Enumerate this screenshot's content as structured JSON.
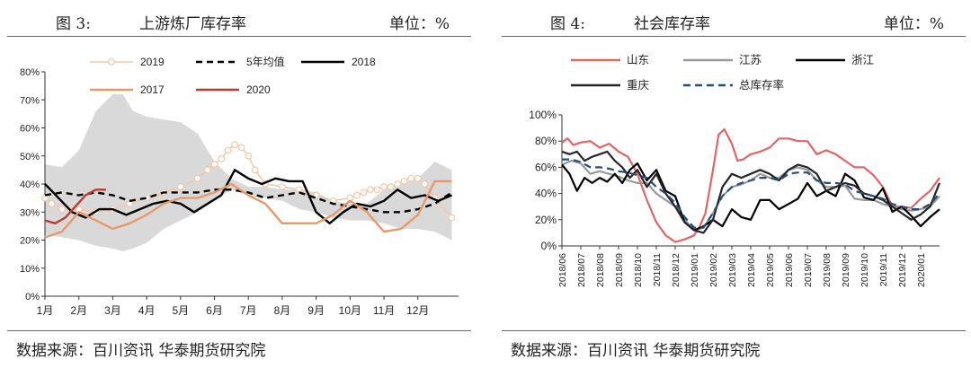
{
  "charts": [
    {
      "figure_label": "图 3:",
      "title": "上游炼厂库存率",
      "unit": "单位：%",
      "source": "数据来源：百川资讯  华泰期货研究院"
    },
    {
      "figure_label": "图 4:",
      "title": "社会库存率",
      "unit": "单位：%",
      "source": "数据来源：百川资讯  华泰期货研究院"
    }
  ],
  "chart_data": [
    {
      "type": "line",
      "title": "上游炼厂库存率",
      "ylim": [
        0,
        80
      ],
      "y_ticks": [
        "0%",
        "10%",
        "20%",
        "30%",
        "40%",
        "50%",
        "60%",
        "70%",
        "80%"
      ],
      "x_ticks": [
        "1月",
        "2月",
        "3月",
        "4月",
        "5月",
        "6月",
        "7月",
        "8月",
        "9月",
        "10月",
        "11月",
        "12月"
      ],
      "xlim": [
        1,
        13.2
      ],
      "legend": "top",
      "band": {
        "color": "#d9d9d9",
        "x": [
          1.0,
          1.5,
          2.0,
          2.5,
          3.0,
          3.3,
          3.6,
          4.0,
          4.5,
          5.0,
          5.5,
          6.0,
          6.5,
          7.0,
          7.5,
          8.0,
          8.5,
          9.0,
          9.5,
          10.0,
          10.5,
          11.0,
          11.5,
          12.0,
          12.5,
          13.0
        ],
        "upper": [
          47,
          46,
          52,
          66,
          72,
          72,
          66,
          64,
          63,
          62,
          58,
          48,
          42,
          39,
          39,
          38,
          38,
          37,
          34,
          33,
          33,
          38,
          40,
          42,
          48,
          45
        ],
        "lower": [
          22,
          21,
          20,
          18,
          17,
          16,
          17,
          19,
          24,
          27,
          30,
          34,
          38,
          36,
          35,
          34,
          31,
          30,
          28,
          27,
          27,
          26,
          24,
          24,
          23,
          20
        ]
      },
      "series": [
        {
          "name": "2019",
          "color": "#f4c7a8",
          "marker": "circle",
          "x": [
            1.0,
            1.2,
            1.5,
            2.0,
            2.5,
            3.0,
            3.5,
            4.0,
            4.5,
            5.0,
            5.5,
            5.8,
            6.0,
            6.2,
            6.4,
            6.6,
            6.8,
            7.0,
            7.2,
            7.5,
            8.0,
            8.5,
            9.0,
            9.5,
            10.0,
            10.2,
            10.4,
            10.6,
            10.8,
            11.0,
            11.2,
            11.4,
            11.6,
            11.8,
            12.0,
            12.2,
            12.5,
            13.0
          ],
          "y": [
            35,
            33,
            31,
            31,
            30,
            31,
            33,
            35,
            37,
            39,
            42,
            45,
            47,
            49,
            52,
            54,
            53,
            50,
            45,
            40,
            39,
            38,
            36,
            34,
            35,
            36,
            37,
            38,
            38,
            39,
            39,
            40,
            41,
            42,
            42,
            40,
            35,
            28
          ]
        },
        {
          "name": "5年均值",
          "color": "#000000",
          "dash": true,
          "x": [
            1.0,
            1.5,
            2.0,
            2.5,
            3.0,
            3.5,
            4.0,
            4.5,
            5.0,
            5.5,
            6.0,
            6.5,
            7.0,
            7.5,
            8.0,
            8.5,
            9.0,
            9.5,
            10.0,
            10.5,
            11.0,
            11.5,
            12.0,
            12.5,
            13.0
          ],
          "y": [
            36,
            37,
            36,
            37,
            36,
            34,
            35,
            37,
            37,
            37,
            38,
            38,
            37,
            35,
            36,
            37,
            35,
            33,
            32,
            31,
            30,
            30,
            31,
            33,
            37
          ]
        },
        {
          "name": "2018",
          "color": "#000000",
          "x": [
            1.0,
            1.4,
            1.8,
            2.2,
            2.6,
            3.0,
            3.4,
            3.8,
            4.2,
            4.6,
            5.0,
            5.4,
            5.8,
            6.2,
            6.6,
            7.0,
            7.4,
            7.8,
            8.2,
            8.6,
            9.0,
            9.4,
            9.8,
            10.2,
            10.6,
            11.0,
            11.4,
            11.8,
            12.2,
            12.6,
            13.0
          ],
          "y": [
            40,
            35,
            30,
            28,
            31,
            31,
            29,
            31,
            33,
            34,
            33,
            30,
            33,
            36,
            45,
            42,
            40,
            42,
            41,
            41,
            30,
            26,
            30,
            33,
            32,
            34,
            38,
            35,
            36,
            34,
            36
          ]
        },
        {
          "name": "2017",
          "color": "#e8996a",
          "x": [
            1.0,
            1.5,
            2.0,
            2.5,
            3.0,
            3.5,
            4.0,
            4.5,
            5.0,
            5.5,
            6.0,
            6.5,
            7.0,
            7.5,
            8.0,
            8.5,
            9.0,
            9.5,
            10.0,
            10.5,
            11.0,
            11.5,
            12.0,
            12.5,
            13.0
          ],
          "y": [
            21,
            23,
            30,
            27,
            24,
            26,
            29,
            33,
            35,
            35,
            37,
            40,
            36,
            33,
            26,
            26,
            26,
            29,
            34,
            30,
            23,
            24,
            29,
            41,
            41
          ]
        },
        {
          "name": "2020",
          "color": "#c0392b",
          "x": [
            1.0,
            1.3,
            1.6,
            1.9,
            2.2,
            2.5,
            2.8
          ],
          "y": [
            27,
            26,
            28,
            32,
            36,
            38,
            38
          ]
        }
      ]
    },
    {
      "type": "line",
      "title": "社会库存率",
      "ylim": [
        0,
        100
      ],
      "y_ticks": [
        "0%",
        "20%",
        "40%",
        "60%",
        "80%",
        "100%"
      ],
      "x_ticks": [
        "2018/06",
        "2018/07",
        "2018/08",
        "2018/09",
        "2018/10",
        "2018/11",
        "2018/12",
        "2019/01",
        "2019/02",
        "2019/03",
        "2019/04",
        "2019/05",
        "2019/06",
        "2019/07",
        "2019/08",
        "2019/09",
        "2019/10",
        "2019/11",
        "2019/12",
        "2020/01"
      ],
      "xlim": [
        0,
        20
      ],
      "legend": "top",
      "series": [
        {
          "name": "山东",
          "color": "#e06666",
          "x": [
            0,
            0.3,
            0.6,
            1,
            1.5,
            2,
            2.5,
            3,
            3.5,
            4,
            4.5,
            5,
            5.5,
            6,
            6.5,
            7,
            7.3,
            7.6,
            8,
            8.3,
            8.6,
            9,
            9.3,
            9.6,
            10,
            10.5,
            11,
            11.5,
            12,
            12.5,
            13,
            13.5,
            14,
            14.5,
            15,
            15.5,
            16,
            16.5,
            17,
            17.5,
            18,
            18.5,
            19,
            19.5,
            20
          ],
          "y": [
            79,
            82,
            77,
            79,
            80,
            75,
            78,
            72,
            68,
            55,
            35,
            18,
            8,
            3,
            5,
            8,
            15,
            25,
            58,
            85,
            89,
            78,
            65,
            66,
            70,
            72,
            75,
            82,
            82,
            80,
            80,
            70,
            73,
            70,
            65,
            60,
            60,
            54,
            45,
            30,
            30,
            29,
            36,
            42,
            52
          ]
        },
        {
          "name": "江苏",
          "color": "#999999",
          "x": [
            0,
            0.5,
            1,
            1.5,
            2,
            2.5,
            3,
            3.5,
            4,
            4.5,
            5,
            5.5,
            6,
            6.5,
            7,
            7.5,
            8,
            8.5,
            9,
            9.5,
            10,
            10.5,
            11,
            11.5,
            12,
            12.5,
            13,
            13.5,
            14,
            14.5,
            15,
            15.5,
            16,
            16.5,
            17,
            17.5,
            18,
            18.5,
            19,
            19.5,
            20
          ],
          "y": [
            62,
            65,
            63,
            55,
            57,
            55,
            53,
            50,
            48,
            48,
            40,
            35,
            30,
            20,
            12,
            14,
            25,
            38,
            45,
            47,
            50,
            55,
            52,
            52,
            58,
            60,
            58,
            50,
            45,
            45,
            46,
            36,
            35,
            35,
            32,
            30,
            28,
            27,
            28,
            30,
            38
          ]
        },
        {
          "name": "浙江",
          "color": "#000000",
          "x": [
            0,
            0.4,
            0.8,
            1.2,
            1.6,
            2,
            2.4,
            2.8,
            3.2,
            3.6,
            4,
            4.5,
            5,
            5.5,
            6,
            6.5,
            7,
            7.5,
            8,
            8.5,
            9,
            9.5,
            10,
            10.5,
            11,
            11.5,
            12,
            12.5,
            13,
            13.5,
            14,
            14.5,
            15,
            15.5,
            16,
            16.5,
            17,
            17.5,
            18,
            18.5,
            19,
            19.5,
            20
          ],
          "y": [
            62,
            55,
            42,
            52,
            48,
            52,
            49,
            55,
            48,
            58,
            63,
            50,
            58,
            42,
            38,
            18,
            12,
            15,
            20,
            15,
            28,
            22,
            20,
            35,
            35,
            28,
            32,
            36,
            48,
            38,
            42,
            38,
            55,
            50,
            37,
            35,
            44,
            26,
            30,
            23,
            15,
            22,
            28
          ]
        },
        {
          "name": "重庆",
          "color": "#262626",
          "x": [
            0,
            0.4,
            0.8,
            1.2,
            1.6,
            2,
            2.4,
            2.8,
            3.2,
            3.6,
            4,
            4.5,
            5,
            5.5,
            6,
            6.5,
            7,
            7.5,
            8,
            8.5,
            9,
            9.5,
            10,
            10.5,
            11,
            11.5,
            12,
            12.5,
            13,
            13.5,
            14,
            14.5,
            15,
            15.5,
            16,
            16.5,
            17,
            17.5,
            18,
            18.5,
            19,
            19.5,
            20
          ],
          "y": [
            72,
            70,
            72,
            65,
            68,
            70,
            72,
            65,
            60,
            52,
            58,
            45,
            55,
            40,
            30,
            18,
            12,
            10,
            20,
            45,
            55,
            52,
            55,
            58,
            55,
            50,
            58,
            62,
            60,
            55,
            42,
            45,
            48,
            46,
            40,
            38,
            35,
            30,
            25,
            20,
            24,
            30,
            48
          ]
        },
        {
          "name": "总库存率",
          "color": "#1f4e79",
          "dash": true,
          "x": [
            0,
            0.5,
            1,
            1.5,
            2,
            2.5,
            3,
            3.5,
            4,
            4.5,
            5,
            5.5,
            6,
            6.5,
            7,
            7.5,
            8,
            8.5,
            9,
            9.5,
            10,
            10.5,
            11,
            11.5,
            12,
            12.5,
            13,
            13.5,
            14,
            14.5,
            15,
            15.5,
            16,
            16.5,
            17,
            17.5,
            18,
            18.5,
            19,
            19.5,
            20
          ],
          "y": [
            66,
            66,
            64,
            60,
            60,
            59,
            57,
            56,
            54,
            52,
            45,
            40,
            33,
            22,
            14,
            14,
            25,
            38,
            45,
            48,
            50,
            52,
            52,
            50,
            55,
            56,
            56,
            50,
            48,
            48,
            47,
            42,
            40,
            38,
            36,
            32,
            30,
            28,
            28,
            32,
            40
          ]
        }
      ]
    }
  ]
}
